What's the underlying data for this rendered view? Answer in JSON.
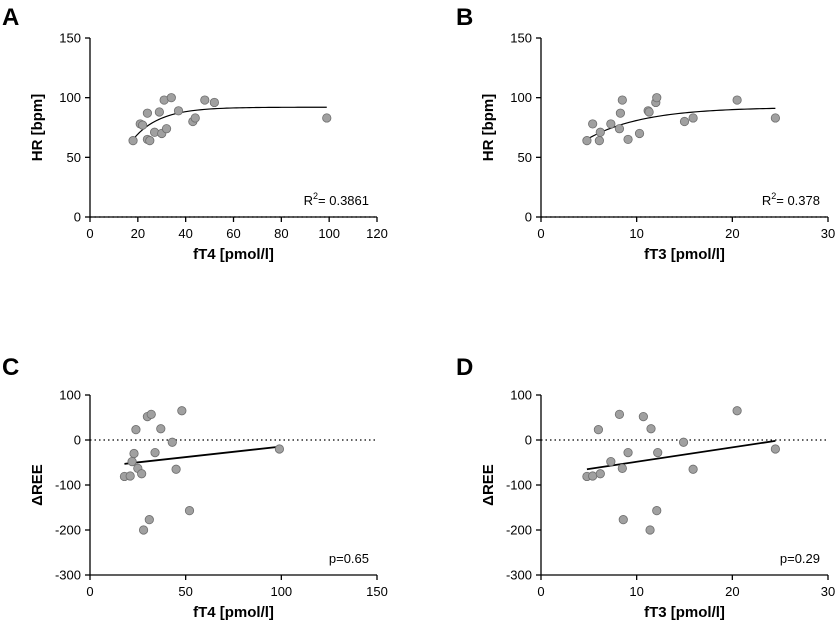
{
  "chart_data": [
    {
      "panel": "A",
      "type": "scatter",
      "xlabel": "fT4 [pmol/l]",
      "ylabel": "HR [bpm]",
      "xlim": [
        0,
        120
      ],
      "ylim": [
        0,
        150
      ],
      "xticks": [
        0,
        20,
        40,
        60,
        80,
        100,
        120
      ],
      "yticks": [
        0,
        50,
        100,
        150
      ],
      "annotation": "R2= 0.3861",
      "zero_line": false,
      "fit": {
        "kind": "curve",
        "plateau": 92,
        "y0": 65,
        "x0": 18,
        "k": 0.09,
        "x_start": 18,
        "x_end": 99
      },
      "points": [
        [
          18,
          64
        ],
        [
          21,
          78
        ],
        [
          22,
          77
        ],
        [
          24,
          65
        ],
        [
          24,
          87
        ],
        [
          25,
          64
        ],
        [
          27,
          71
        ],
        [
          29,
          88
        ],
        [
          30,
          70
        ],
        [
          31,
          98
        ],
        [
          32,
          74
        ],
        [
          34,
          100
        ],
        [
          37,
          89
        ],
        [
          43,
          80
        ],
        [
          44,
          83
        ],
        [
          48,
          98
        ],
        [
          52,
          96
        ],
        [
          99,
          83
        ]
      ]
    },
    {
      "panel": "B",
      "type": "scatter",
      "xlabel": "fT3 [pmol/l]",
      "ylabel": "HR [bpm]",
      "xlim": [
        0,
        30
      ],
      "ylim": [
        0,
        150
      ],
      "xticks": [
        0,
        10,
        20,
        30
      ],
      "yticks": [
        0,
        50,
        100,
        150
      ],
      "annotation": "R2= 0.378",
      "zero_line": false,
      "fit": {
        "kind": "curve",
        "plateau": 92,
        "y0": 66,
        "x0": 5,
        "k": 0.17,
        "x_start": 5,
        "x_end": 24.5
      },
      "points": [
        [
          4.8,
          64
        ],
        [
          5.4,
          78
        ],
        [
          6.1,
          64
        ],
        [
          6.2,
          71
        ],
        [
          7.3,
          78
        ],
        [
          8.2,
          74
        ],
        [
          8.3,
          87
        ],
        [
          8.5,
          98
        ],
        [
          9.1,
          65
        ],
        [
          10.3,
          70
        ],
        [
          11.2,
          89
        ],
        [
          11.3,
          88
        ],
        [
          12.0,
          96
        ],
        [
          12.1,
          100
        ],
        [
          15.0,
          80
        ],
        [
          15.9,
          83
        ],
        [
          20.5,
          98
        ],
        [
          24.5,
          83
        ]
      ]
    },
    {
      "panel": "C",
      "type": "scatter",
      "xlabel": "fT4 [pmol/l]",
      "ylabel": "ΔREE",
      "xlim": [
        0,
        150
      ],
      "ylim": [
        -300,
        100
      ],
      "xticks": [
        0,
        50,
        100,
        150
      ],
      "yticks": [
        -300,
        -200,
        -100,
        0,
        100
      ],
      "annotation": "p=0.65",
      "zero_line": true,
      "fit": {
        "kind": "line",
        "x1": 18,
        "y1": -53,
        "x2": 99,
        "y2": -15
      },
      "points": [
        [
          18,
          -81
        ],
        [
          21,
          -80
        ],
        [
          22,
          -48
        ],
        [
          23,
          -30
        ],
        [
          24,
          23
        ],
        [
          25,
          -63
        ],
        [
          27,
          -75
        ],
        [
          28,
          -200
        ],
        [
          30,
          52
        ],
        [
          31,
          -177
        ],
        [
          32,
          57
        ],
        [
          34,
          -28
        ],
        [
          37,
          25
        ],
        [
          43,
          -5
        ],
        [
          45,
          -65
        ],
        [
          48,
          65
        ],
        [
          52,
          -157
        ],
        [
          99,
          -20
        ]
      ]
    },
    {
      "panel": "D",
      "type": "scatter",
      "xlabel": "fT3 [pmol/l]",
      "ylabel": "ΔREE",
      "xlim": [
        0,
        30
      ],
      "ylim": [
        -300,
        100
      ],
      "xticks": [
        0,
        10,
        20,
        30
      ],
      "yticks": [
        -300,
        -200,
        -100,
        0,
        100
      ],
      "annotation": "p=0.29",
      "zero_line": true,
      "fit": {
        "kind": "line",
        "x1": 4.8,
        "y1": -65,
        "x2": 24.5,
        "y2": -2
      },
      "points": [
        [
          4.8,
          -81
        ],
        [
          5.4,
          -80
        ],
        [
          6.0,
          23
        ],
        [
          6.2,
          -75
        ],
        [
          7.3,
          -48
        ],
        [
          8.2,
          57
        ],
        [
          8.5,
          -63
        ],
        [
          8.6,
          -177
        ],
        [
          9.1,
          -28
        ],
        [
          10.7,
          52
        ],
        [
          11.4,
          -200
        ],
        [
          11.5,
          25
        ],
        [
          12.1,
          -157
        ],
        [
          12.2,
          -28
        ],
        [
          14.9,
          -5
        ],
        [
          15.9,
          -65
        ],
        [
          20.5,
          65
        ],
        [
          24.5,
          -20
        ]
      ]
    }
  ]
}
